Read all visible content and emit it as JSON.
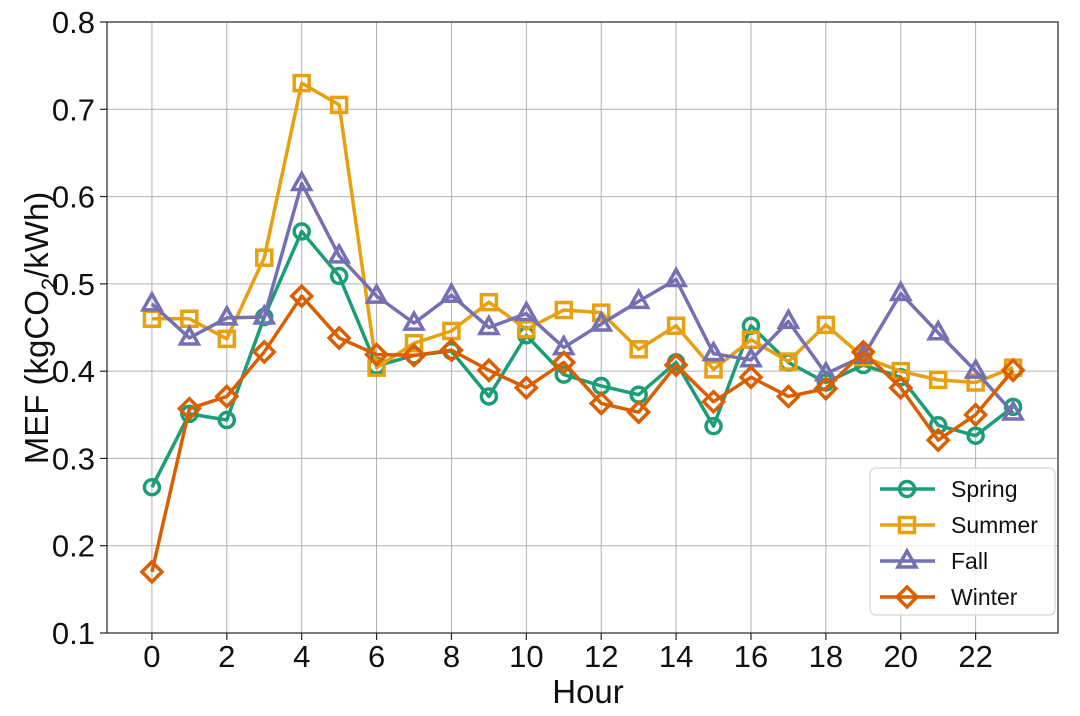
{
  "chart_data": {
    "type": "line",
    "xlabel": "Hour",
    "ylabel": {
      "prefix": "MEF (kgCO",
      "sub": "2",
      "suffix": "/kWh)"
    },
    "xlim": [
      -1.2,
      24.2
    ],
    "ylim": [
      0.1,
      0.8
    ],
    "xticks": [
      0,
      2,
      4,
      6,
      8,
      10,
      12,
      14,
      16,
      18,
      20,
      22
    ],
    "yticks": [
      0.1,
      0.2,
      0.3,
      0.4,
      0.5,
      0.6,
      0.7,
      0.8
    ],
    "grid": true,
    "legend_position": "bottom-right",
    "x": [
      0,
      1,
      2,
      3,
      4,
      5,
      6,
      7,
      8,
      9,
      10,
      11,
      12,
      13,
      14,
      15,
      16,
      17,
      18,
      19,
      20,
      21,
      22,
      23
    ],
    "series": [
      {
        "name": "Spring",
        "color": "#1b9e77",
        "marker": "circle",
        "values": [
          0.267,
          0.351,
          0.344,
          0.462,
          0.56,
          0.509,
          0.406,
          0.418,
          0.423,
          0.371,
          0.441,
          0.396,
          0.383,
          0.373,
          0.41,
          0.337,
          0.452,
          0.41,
          0.387,
          0.407,
          0.393,
          0.338,
          0.326,
          0.359
        ]
      },
      {
        "name": "Summer",
        "color": "#e6a010",
        "marker": "square",
        "values": [
          0.46,
          0.46,
          0.437,
          0.53,
          0.73,
          0.705,
          0.404,
          0.432,
          0.446,
          0.479,
          0.448,
          0.47,
          0.467,
          0.425,
          0.452,
          0.402,
          0.436,
          0.411,
          0.453,
          0.416,
          0.4,
          0.39,
          0.387,
          0.404
        ]
      },
      {
        "name": "Fall",
        "color": "#7570b3",
        "marker": "triangle",
        "values": [
          0.477,
          0.438,
          0.461,
          0.462,
          0.615,
          0.532,
          0.486,
          0.455,
          0.487,
          0.45,
          0.466,
          0.427,
          0.454,
          0.48,
          0.505,
          0.42,
          0.413,
          0.457,
          0.397,
          0.417,
          0.489,
          0.444,
          0.4,
          0.352
        ]
      },
      {
        "name": "Winter",
        "color": "#d95f02",
        "marker": "diamond",
        "values": [
          0.17,
          0.357,
          0.371,
          0.422,
          0.486,
          0.438,
          0.419,
          0.418,
          0.424,
          0.401,
          0.381,
          0.41,
          0.363,
          0.353,
          0.407,
          0.365,
          0.393,
          0.371,
          0.38,
          0.422,
          0.381,
          0.321,
          0.35,
          0.401
        ]
      }
    ]
  }
}
